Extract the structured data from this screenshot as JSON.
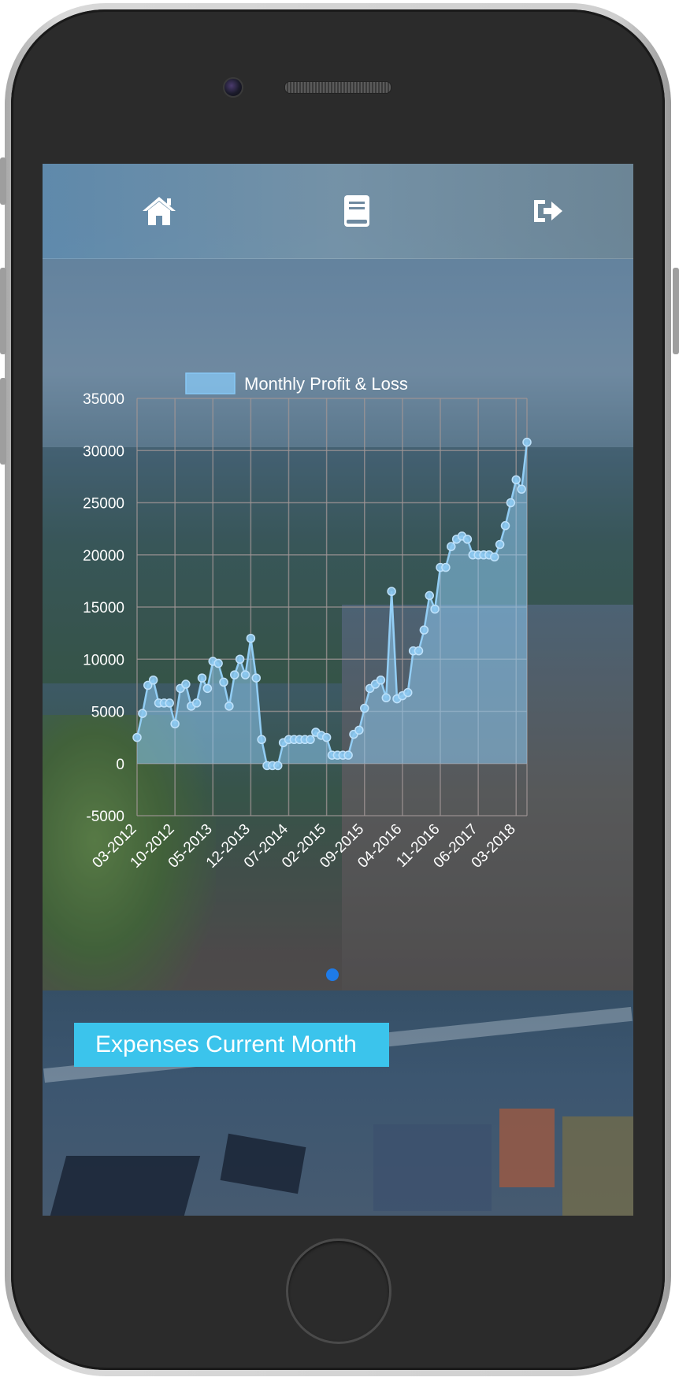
{
  "nav": {
    "home_icon": "home-icon",
    "book_icon": "book-icon",
    "logout_icon": "sign-out-icon"
  },
  "chart_data": {
    "type": "area",
    "legend": [
      "Monthly Profit & Loss"
    ],
    "legend_position": "top",
    "ylim": [
      -5000,
      35000
    ],
    "yticks": [
      -5000,
      0,
      5000,
      10000,
      15000,
      20000,
      25000,
      30000,
      35000
    ],
    "xtick_labels": [
      "03-2012",
      "10-2012",
      "05-2013",
      "12-2013",
      "07-2014",
      "02-2015",
      "09-2015",
      "04-2016",
      "11-2016",
      "06-2017",
      "03-2018"
    ],
    "grid": true,
    "series": [
      {
        "name": "Monthly Profit & Loss",
        "color": "#8cc8f0",
        "values": [
          2500,
          4800,
          7500,
          8000,
          5800,
          5800,
          5800,
          3800,
          7200,
          7600,
          5500,
          5800,
          8200,
          7200,
          9800,
          9600,
          7800,
          5500,
          8500,
          10000,
          8500,
          12000,
          8200,
          2300,
          -200,
          -200,
          -200,
          2000,
          2300,
          2300,
          2300,
          2300,
          2300,
          3000,
          2700,
          2500,
          800,
          800,
          800,
          800,
          2800,
          3200,
          5300,
          7200,
          7600,
          8000,
          6300,
          16500,
          6200,
          6500,
          6800,
          10800,
          10800,
          12800,
          16100,
          14800,
          18800,
          18800,
          20800,
          21500,
          21800,
          21500,
          20000,
          20000,
          20000,
          20000,
          19800,
          21000,
          22800,
          25000,
          27200,
          26300,
          30800
        ]
      }
    ]
  },
  "carousel": {
    "active_dot_color": "#1e7be8"
  },
  "expenses": {
    "label": "Expenses Current Month",
    "color": "#3bc4ec"
  }
}
